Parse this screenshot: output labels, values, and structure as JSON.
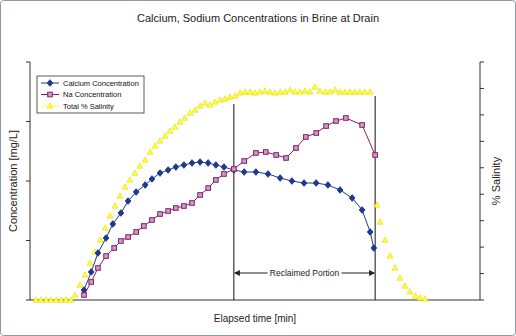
{
  "chart_data": {
    "type": "line",
    "title": "Calcium, Sodium Concentrations in Brine at Drain",
    "x_label": "Elapsed time [min]",
    "y_label": "Concentration [mg/L]",
    "y2_label": "% Salinity",
    "xlim": [
      0,
      100
    ],
    "xticks": [],
    "ylim": [
      0,
      400
    ],
    "yticks": [
      0,
      100,
      200,
      300,
      400
    ],
    "y2lim": [
      0,
      18
    ],
    "y2ticks": [
      0,
      2,
      4,
      6,
      8,
      10,
      12,
      14,
      16,
      18
    ],
    "tick_labels": false,
    "grid": false,
    "legend": "upper-left",
    "annotations": [
      {
        "text": "Reclaimed Portion",
        "x": [
          45.3,
          76.7
        ]
      }
    ],
    "series": [
      {
        "name": "Calcium Concentration",
        "color": "#1f3a8f",
        "marker": "diamond",
        "line_style": "solid",
        "x": [
          12.0,
          13.6,
          15.1,
          16.9,
          18.4,
          20.2,
          21.8,
          23.6,
          25.6,
          27.1,
          28.9,
          30.7,
          32.4,
          34.2,
          36.0,
          37.8,
          39.6,
          41.3,
          43.1,
          45.3,
          47.6,
          50.2,
          52.9,
          55.6,
          58.2,
          60.9,
          63.6,
          66.2,
          68.9,
          71.6,
          73.8,
          75.6,
          76.4
        ],
        "values": [
          16.8,
          47.1,
          79.0,
          104.2,
          127.7,
          146.2,
          166.4,
          181.5,
          193.3,
          203.4,
          213.4,
          218.5,
          223.5,
          226.9,
          230.3,
          231.9,
          230.3,
          226.9,
          223.5,
          218.5,
          215.1,
          215.1,
          211.8,
          205.0,
          200.0,
          196.6,
          196.6,
          193.3,
          184.9,
          171.4,
          151.3,
          114.3,
          87.4
        ]
      },
      {
        "name": "Na Concentration",
        "color": "#8b1a6b",
        "marker": "square",
        "line_style": "solid",
        "x": [
          12.0,
          13.6,
          15.1,
          16.9,
          18.7,
          20.2,
          21.8,
          23.6,
          25.3,
          27.1,
          28.9,
          30.7,
          32.4,
          34.2,
          36.0,
          37.8,
          39.6,
          41.3,
          43.1,
          45.3,
          47.6,
          50.2,
          52.4,
          54.7,
          56.9,
          59.1,
          61.3,
          63.6,
          65.8,
          68.0,
          70.2,
          73.8,
          76.7
        ],
        "values": [
          8.4,
          30.3,
          53.8,
          73.9,
          87.4,
          99.2,
          105.9,
          114.3,
          124.4,
          134.5,
          144.5,
          149.6,
          154.6,
          158.0,
          163.0,
          176.5,
          188.2,
          201.7,
          211.8,
          220.2,
          233.6,
          247.1,
          248.7,
          243.7,
          238.7,
          255.5,
          274.0,
          280.7,
          292.4,
          300.8,
          305.9,
          294.1,
          243.7
        ]
      },
      {
        "name": "Total % Salinity",
        "color": "#ffff33",
        "marker": "triangle",
        "line_style": "none",
        "axis": "y2",
        "x": [
          1.3,
          2.4,
          3.6,
          4.7,
          5.8,
          6.9,
          8.0,
          9.1,
          10.0,
          11.1,
          12.2,
          13.3,
          14.4,
          15.6,
          16.7,
          17.8,
          18.9,
          20.0,
          21.1,
          22.2,
          23.3,
          24.4,
          25.6,
          26.7,
          27.8,
          28.9,
          30.0,
          31.1,
          32.2,
          33.3,
          34.4,
          35.6,
          36.7,
          37.8,
          38.9,
          40.0,
          41.1,
          42.2,
          43.3,
          44.4,
          45.6,
          46.7,
          47.8,
          48.9,
          50.0,
          51.1,
          52.2,
          53.3,
          54.4,
          55.6,
          56.7,
          57.8,
          58.9,
          60.0,
          61.1,
          62.2,
          63.3,
          64.4,
          65.6,
          66.7,
          67.8,
          68.9,
          70.0,
          71.1,
          72.2,
          73.3,
          74.4,
          75.6,
          77.1,
          77.8,
          78.9,
          80.0,
          81.1,
          82.2,
          83.3,
          84.4,
          85.6,
          86.7,
          87.8
        ],
        "values": [
          0,
          0,
          0,
          0,
          0,
          0,
          0,
          0,
          0.38,
          1.13,
          1.89,
          2.8,
          3.63,
          4.54,
          5.45,
          6.35,
          7.11,
          7.87,
          8.55,
          9.08,
          9.6,
          10.13,
          10.59,
          11.19,
          11.65,
          12.03,
          12.4,
          12.78,
          13.08,
          13.46,
          13.76,
          14.14,
          14.37,
          14.67,
          14.9,
          14.75,
          14.97,
          15.13,
          15.2,
          15.35,
          15.43,
          15.66,
          15.73,
          15.73,
          15.66,
          15.73,
          15.81,
          15.73,
          15.66,
          15.73,
          15.73,
          15.88,
          15.73,
          15.73,
          15.81,
          15.73,
          16.11,
          15.81,
          15.73,
          15.73,
          15.88,
          15.73,
          15.73,
          15.73,
          15.73,
          15.73,
          15.73,
          15.73,
          7.18,
          5.9,
          4.54,
          3.33,
          2.42,
          1.66,
          1.06,
          0.61,
          0.3,
          0.15,
          0.08
        ]
      }
    ]
  }
}
